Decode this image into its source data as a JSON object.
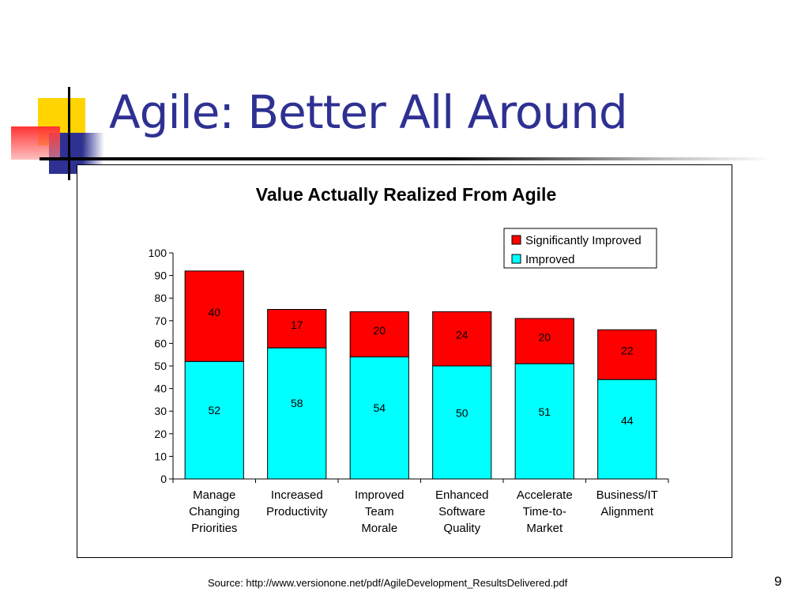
{
  "slide": {
    "title": "Agile: Better All Around",
    "source": "Source: http://www.versionone.net/pdf/AgileDevelopment_ResultsDelivered.pdf",
    "page_number": "9"
  },
  "colors": {
    "title": "#2E3192",
    "significantly_improved": "#FF0000",
    "improved": "#00FFFF",
    "deco_yellow": "#FFD400",
    "deco_blue": "#2E3192",
    "deco_red": "#FF3333"
  },
  "chart_data": {
    "type": "bar",
    "stacked": true,
    "title": "Value Actually Realized From Agile",
    "categories": [
      [
        "Manage",
        "Changing",
        "Priorities"
      ],
      [
        "Increased",
        "Productivity"
      ],
      [
        "Improved",
        "Team",
        "Morale"
      ],
      [
        "Enhanced",
        "Software",
        "Quality"
      ],
      [
        "Accelerate",
        "Time-to-",
        "Market"
      ],
      [
        "Business/IT",
        "Alignment"
      ]
    ],
    "series": [
      {
        "name": "Improved",
        "color": "#00FFFF",
        "values": [
          52,
          58,
          54,
          50,
          51,
          44
        ]
      },
      {
        "name": "Significantly Improved",
        "color": "#FF0000",
        "values": [
          40,
          17,
          20,
          24,
          20,
          22
        ]
      }
    ],
    "legend_order": [
      "Significantly Improved",
      "Improved"
    ],
    "legend_position": "top-right",
    "ylim": [
      0,
      100
    ],
    "yticks": [
      0,
      10,
      20,
      30,
      40,
      50,
      60,
      70,
      80,
      90,
      100
    ],
    "xlabel": "",
    "ylabel": "",
    "grid": false
  }
}
